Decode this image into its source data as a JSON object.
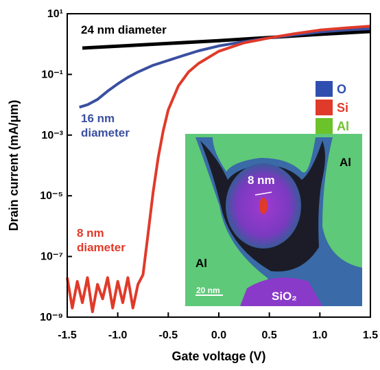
{
  "chart_data": {
    "type": "line",
    "xlabel": "Gate voltage (V)",
    "ylabel": "Drain current (mA/μm)",
    "yscale": "log",
    "xlim": [
      -1.5,
      1.5
    ],
    "xticks": [
      -1.5,
      -1.0,
      -0.5,
      0.0,
      0.5,
      1.0,
      1.5
    ],
    "ylim": [
      1e-09,
      10
    ],
    "yticks": [
      {
        "value": 10,
        "label": "10¹"
      },
      {
        "value": 0.1,
        "label": "10⁻¹"
      },
      {
        "value": 0.001,
        "label": "10⁻³"
      },
      {
        "value": 1e-05,
        "label": "10⁻⁵"
      },
      {
        "value": 1e-07,
        "label": "10⁻⁷"
      },
      {
        "value": 1e-09,
        "label": "10⁻⁹"
      }
    ],
    "series": [
      {
        "name": "24 nm diameter",
        "color": "#000000",
        "x": [
          -1.35,
          -1.0,
          -0.5,
          0.0,
          0.5,
          1.0,
          1.5
        ],
        "values": [
          0.74,
          0.85,
          1.05,
          1.3,
          1.65,
          2.1,
          2.6
        ]
      },
      {
        "name": "16 nm diameter",
        "color": "#3a4fa0",
        "x": [
          -1.38,
          -1.3,
          -1.2,
          -1.1,
          -1.0,
          -0.9,
          -0.8,
          -0.65,
          -0.5,
          -0.35,
          -0.2,
          0.0,
          0.25,
          0.5,
          0.75,
          1.0,
          1.25,
          1.5
        ],
        "values": [
          0.0083,
          0.01,
          0.015,
          0.028,
          0.049,
          0.08,
          0.12,
          0.2,
          0.29,
          0.42,
          0.6,
          0.87,
          1.2,
          1.6,
          2.0,
          2.5,
          2.9,
          3.2
        ]
      },
      {
        "name": "8 nm diameter",
        "color": "#e03a2a",
        "x": [
          -1.5,
          -1.45,
          -1.4,
          -1.35,
          -1.3,
          -1.25,
          -1.2,
          -1.15,
          -1.1,
          -1.05,
          -1.0,
          -0.95,
          -0.9,
          -0.85,
          -0.8,
          -0.75,
          -0.7,
          -0.65,
          -0.6,
          -0.55,
          -0.5,
          -0.4,
          -0.3,
          -0.2,
          0.0,
          0.25,
          0.5,
          0.75,
          1.0,
          1.25,
          1.5
        ],
        "values": [
          2e-08,
          2e-09,
          1.5e-08,
          3e-09,
          2e-08,
          1.5e-09,
          1.2e-08,
          4e-09,
          2e-08,
          2e-09,
          1.5e-08,
          3e-09,
          2e-08,
          2e-09,
          1.2e-08,
          2.5e-08,
          5.7e-07,
          1.3e-05,
          0.00018,
          0.0014,
          0.0068,
          0.042,
          0.12,
          0.23,
          0.58,
          1.1,
          1.6,
          2.2,
          2.9,
          3.4,
          3.9
        ]
      }
    ],
    "inset": {
      "legend": [
        {
          "label": "O",
          "color": "#2f4fb0"
        },
        {
          "label": "Si",
          "color": "#e03a2a"
        },
        {
          "label": "Al",
          "color": "#6cc22a"
        }
      ],
      "labels": [
        "Al",
        "Al",
        "8 nm",
        "20 nm",
        "SiO₂"
      ]
    }
  }
}
